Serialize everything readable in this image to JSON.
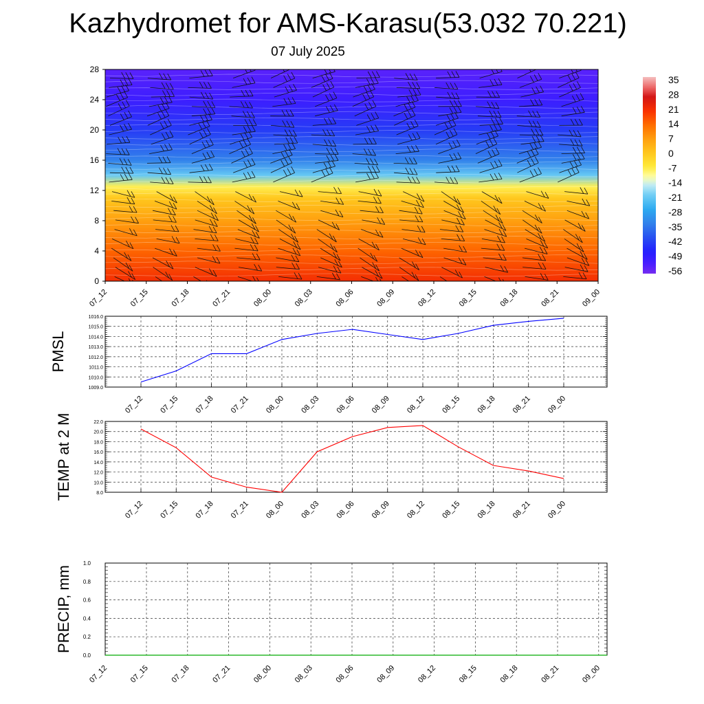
{
  "title": "Kazhydromet for AMS-Karasu(53.032 70.221)",
  "date": "07 July 2025",
  "chart_data": [
    {
      "type": "heatmap",
      "variable": "temperature",
      "y_ticks": [
        0,
        4,
        8,
        12,
        16,
        20,
        24,
        28
      ],
      "ylim": [
        0,
        28
      ],
      "x_ticks": [
        "07_12",
        "07_15",
        "07_18",
        "07_21",
        "08_00",
        "08_03",
        "08_06",
        "08_09",
        "08_12",
        "08_15",
        "08_18",
        "08_21",
        "09_00"
      ],
      "colorbar_labels": [
        "35",
        "28",
        "21",
        "14",
        "7",
        "0",
        "-7",
        "-14",
        "-21",
        "-28",
        "-35",
        "-42",
        "-49",
        "-56"
      ],
      "colorbar_range": [
        -60,
        38
      ],
      "approx_profile": [
        {
          "level": 0,
          "value": 22
        },
        {
          "level": 4,
          "value": 15
        },
        {
          "level": 8,
          "value": 7
        },
        {
          "level": 11,
          "value": 0
        },
        {
          "level": 12.5,
          "value": -8
        },
        {
          "level": 14,
          "value": -22
        },
        {
          "level": 16,
          "value": -35
        },
        {
          "level": 20,
          "value": -45
        },
        {
          "level": 24,
          "value": -53
        },
        {
          "level": 28,
          "value": -57
        }
      ],
      "colors": {
        "warm": "#ff2a00",
        "mid": "#ffeb3b",
        "cold": "#1a1aff",
        "coldest": "#6a1aff"
      }
    },
    {
      "type": "line",
      "ylabel": "PMSL",
      "x": [
        "07_12",
        "07_15",
        "07_18",
        "07_21",
        "08_00",
        "08_03",
        "08_06",
        "08_09",
        "08_12",
        "08_15",
        "08_18",
        "08_21",
        "09_00"
      ],
      "values": [
        1009.5,
        1010.6,
        1012.3,
        1012.3,
        1013.7,
        1014.3,
        1014.7,
        1014.2,
        1013.7,
        1014.3,
        1015.1,
        1015.5,
        1015.8
      ],
      "ylim": [
        1009.0,
        1016.0
      ],
      "y_ticks": [
        "1009.0",
        "1010.0",
        "1011.0",
        "1012.0",
        "1013.0",
        "1014.0",
        "1015.0",
        "1016.0"
      ],
      "color": "#0000ff",
      "grid": true
    },
    {
      "type": "line",
      "ylabel": "TEMP at 2 M",
      "x": [
        "07_12",
        "07_15",
        "07_18",
        "07_21",
        "08_00",
        "08_03",
        "08_06",
        "08_09",
        "08_12",
        "08_15",
        "08_18",
        "08_21",
        "09_00"
      ],
      "values": [
        20.5,
        16.8,
        11.0,
        9.0,
        8.0,
        16.0,
        19.0,
        20.8,
        21.2,
        17.0,
        13.3,
        12.2,
        10.7
      ],
      "ylim": [
        8.0,
        22.0
      ],
      "y_ticks": [
        "8.0",
        "10.0",
        "12.0",
        "14.0",
        "16.0",
        "18.0",
        "20.0",
        "22.0"
      ],
      "color": "#ff0000",
      "grid": true
    },
    {
      "type": "line",
      "ylabel": "PRECIP, mm",
      "x": [
        "07_12",
        "07_15",
        "07_18",
        "07_21",
        "08_00",
        "08_03",
        "08_06",
        "08_09",
        "08_12",
        "08_15",
        "08_18",
        "08_21",
        "09_00"
      ],
      "values": [
        0,
        0,
        0,
        0,
        0,
        0,
        0,
        0,
        0,
        0,
        0,
        0,
        0
      ],
      "ylim": [
        0,
        1.0
      ],
      "y_ticks": [
        "0.0",
        "0.2",
        "0.4",
        "0.6",
        "0.8",
        "1.0"
      ],
      "color": "#00aa00",
      "grid": true
    }
  ]
}
